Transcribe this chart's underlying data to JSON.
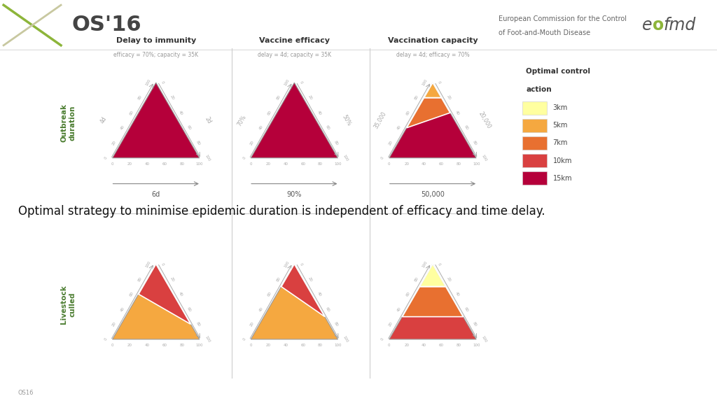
{
  "bg_color": "#ffffff",
  "main_statement": "Optimal strategy to minimise epidemic duration is independent of efficacy and time delay.",
  "footer_text": "OS16",
  "row1_titles": [
    "Delay to immunity",
    "Vaccine efficacy",
    "Vaccination capacity"
  ],
  "row1_subtitles": [
    "efficacy = 70%; capacity = 35K",
    "delay = 4d; capacity = 35K",
    "delay = 4d; efficacy = 70%"
  ],
  "row1_xlabels": [
    "6d",
    "90%",
    "50,000"
  ],
  "row1_left_labels": [
    "4d",
    "70%",
    "35,000"
  ],
  "row1_right_labels": [
    "2d",
    "50%",
    "20,000"
  ],
  "row2_ylabel": "Livestock\nculled",
  "row1_ylabel": "Outbreak\nduration",
  "legend_title_line1": "Optimal control",
  "legend_title_line2": "action",
  "legend_labels": [
    "3km",
    "5km",
    "7km",
    "10km",
    "15km"
  ],
  "color_15km": "#b5003a",
  "color_10km": "#d94040",
  "color_7km": "#e87030",
  "color_5km": "#f5a840",
  "color_3km": "#ffffa0",
  "header_line_color": "#cccccc",
  "axis_label_color": "#aaaaaa",
  "title_color": "#333333",
  "subtitle_color": "#999999",
  "ylabel_color": "#4a7c2f",
  "xlabel_color": "#555555"
}
